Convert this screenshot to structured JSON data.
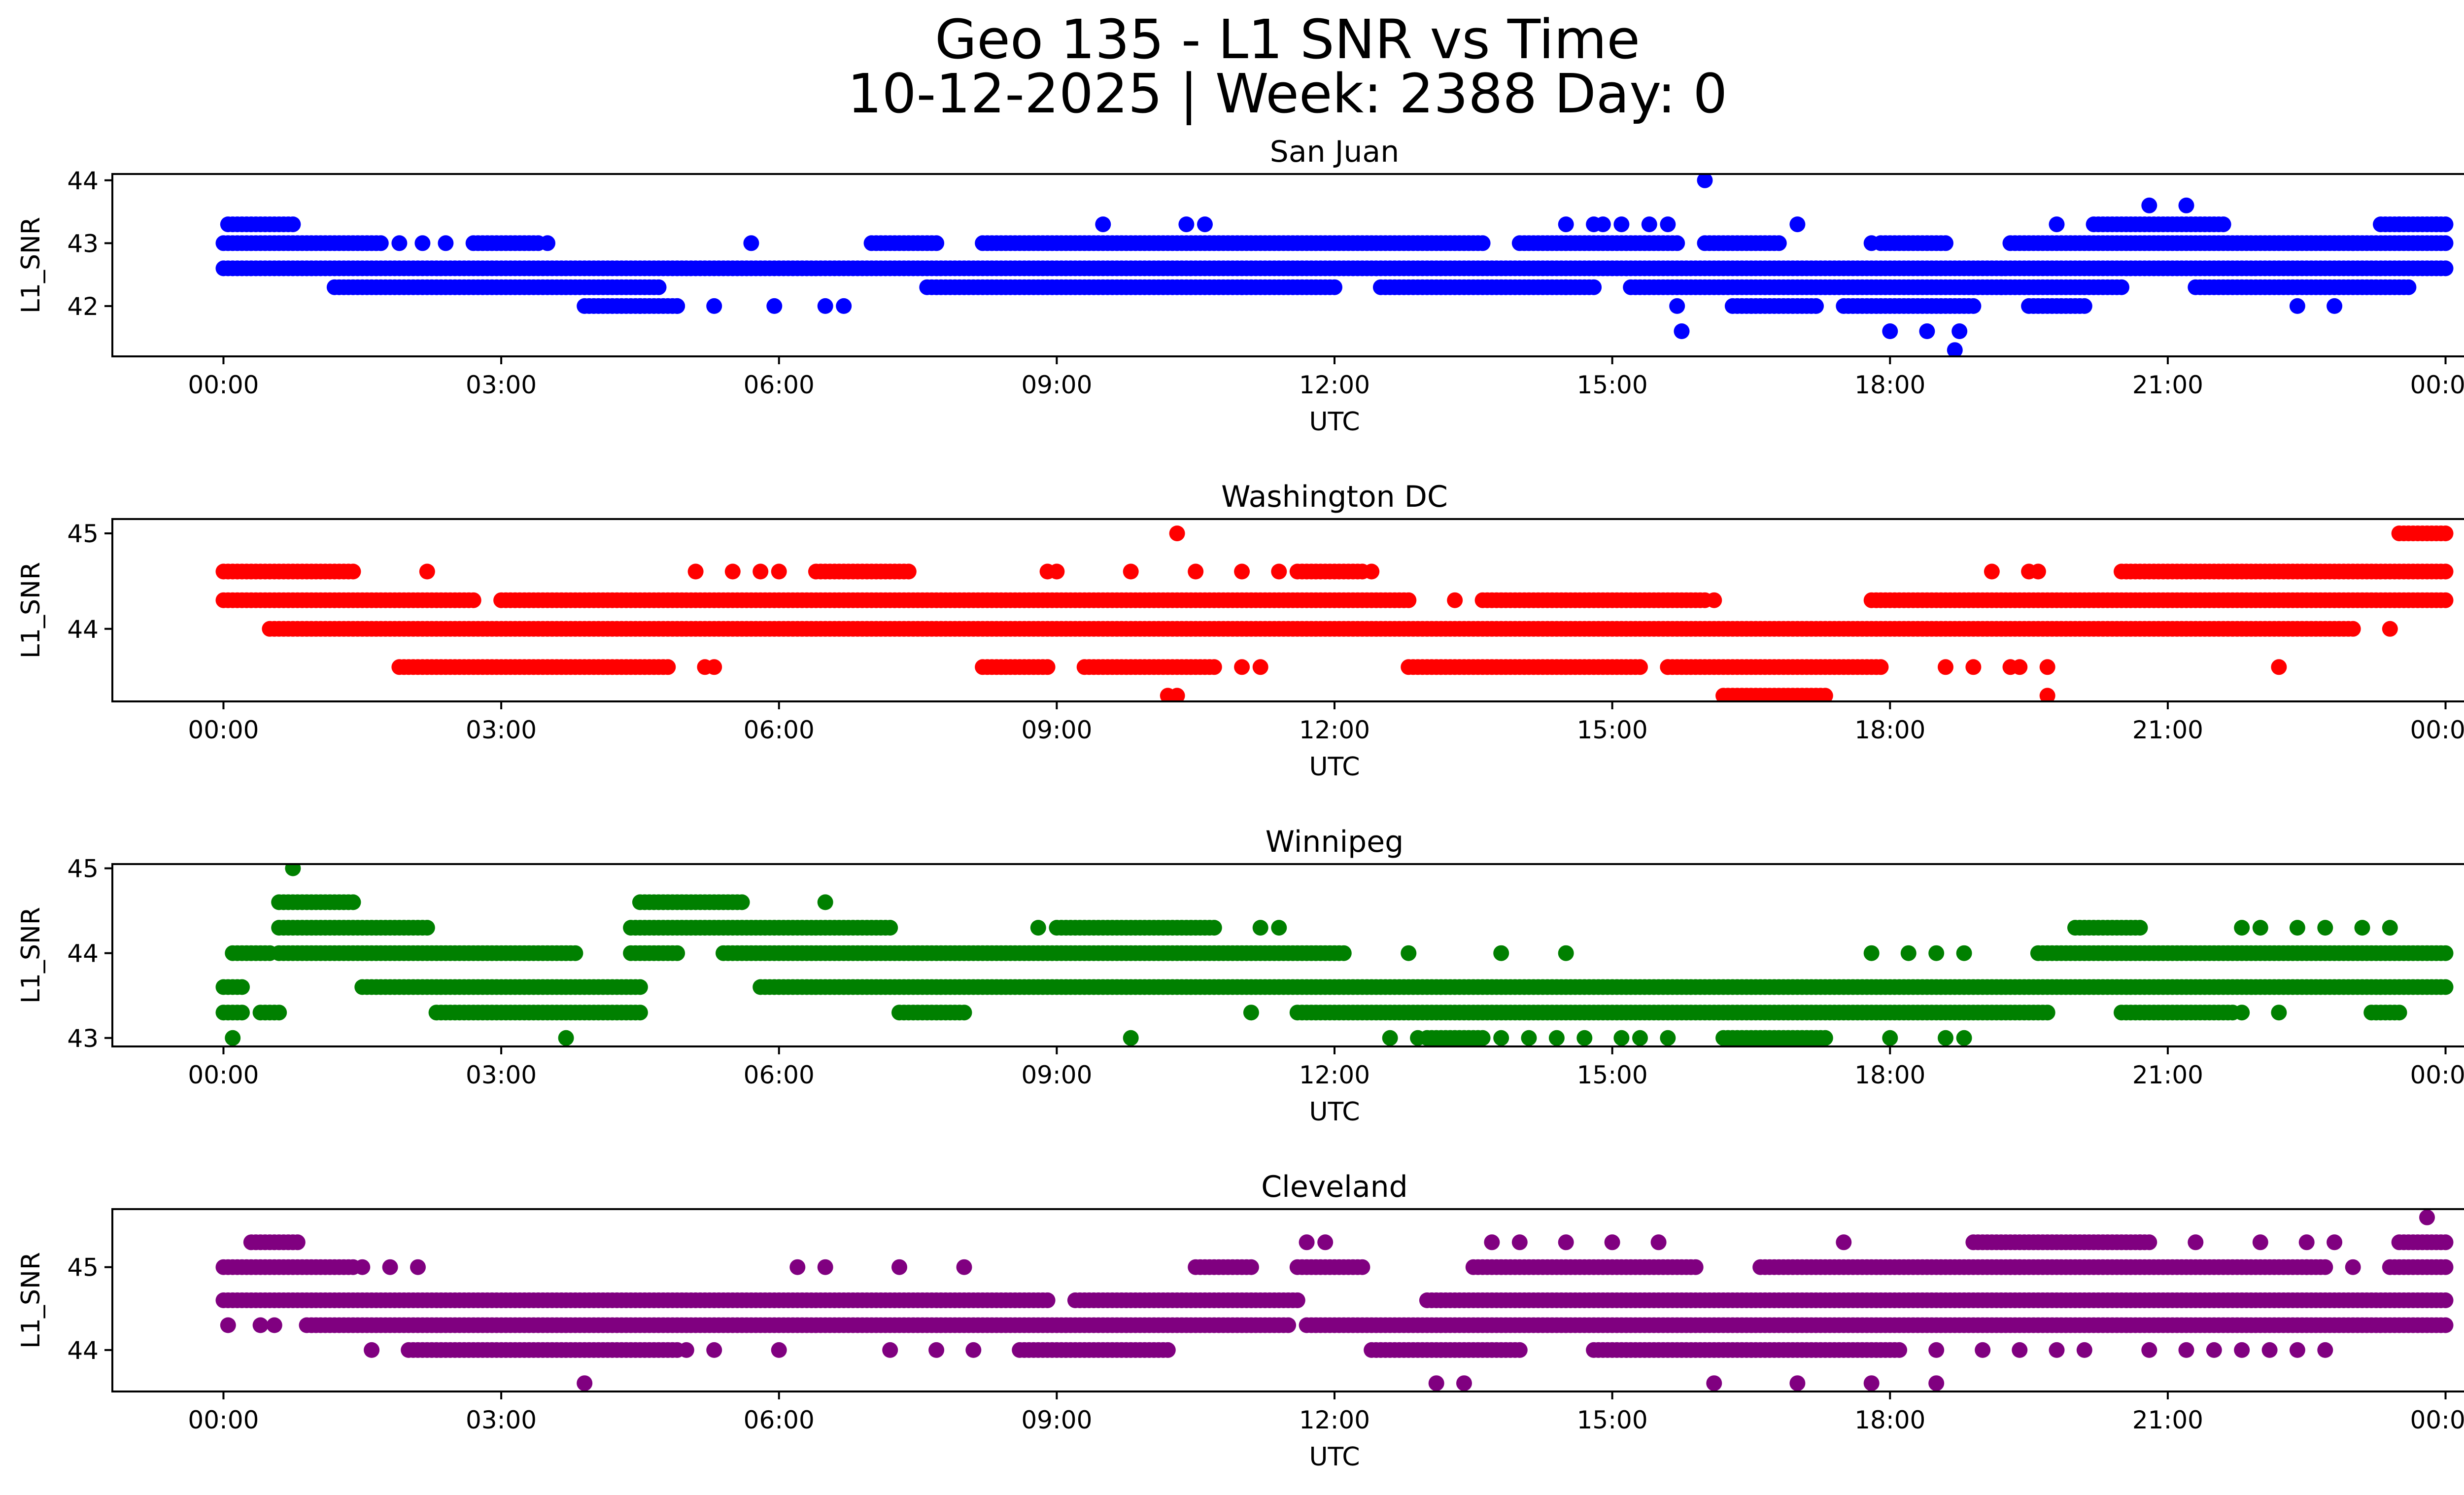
{
  "header": {
    "title_line1": "Geo 135 - L1 SNR vs Time",
    "title_line2": "10-12-2025 | Week: 2388 Day: 0"
  },
  "chart_data": [
    {
      "type": "scatter",
      "title": "San Juan",
      "color": "#0000ff",
      "xlabel": "UTC",
      "ylabel": "L1_SNR",
      "xlim_hours": [
        -1.2,
        25.2
      ],
      "ylim": [
        41.2,
        44.1
      ],
      "xticks": [
        "00:00",
        "03:00",
        "06:00",
        "09:00",
        "12:00",
        "15:00",
        "18:00",
        "21:00",
        "00:00"
      ],
      "yticks": [
        42,
        43,
        44
      ],
      "bands": [
        {
          "y": 42.6,
          "ranges": [
            [
              0.0,
              24.0
            ]
          ]
        },
        {
          "y": 43.0,
          "ranges": [
            [
              0.0,
              1.7
            ],
            [
              2.7,
              3.4
            ],
            [
              7.0,
              7.7
            ],
            [
              8.2,
              13.6
            ],
            [
              14.0,
              15.7
            ],
            [
              16.0,
              16.8
            ],
            [
              17.9,
              18.6
            ],
            [
              19.3,
              24.0
            ]
          ]
        },
        {
          "y": 42.3,
          "ranges": [
            [
              1.2,
              4.7
            ],
            [
              7.6,
              12.0
            ],
            [
              12.5,
              14.8
            ],
            [
              15.2,
              20.5
            ],
            [
              21.3,
              23.6
            ]
          ]
        },
        {
          "y": 43.3,
          "ranges": [
            [
              0.05,
              0.75
            ],
            [
              20.2,
              21.6
            ],
            [
              23.3,
              24.0
            ]
          ]
        },
        {
          "y": 42.0,
          "ranges": [
            [
              3.9,
              4.9
            ],
            [
              16.3,
              17.2
            ],
            [
              17.5,
              18.9
            ],
            [
              19.5,
              20.1
            ]
          ]
        }
      ],
      "points": [
        [
          1.9,
          43.0
        ],
        [
          2.15,
          43.0
        ],
        [
          2.4,
          43.0
        ],
        [
          3.5,
          43.0
        ],
        [
          4.5,
          42.0
        ],
        [
          4.9,
          42.0
        ],
        [
          5.3,
          42.0
        ],
        [
          5.7,
          43.0
        ],
        [
          5.95,
          42.0
        ],
        [
          6.5,
          42.0
        ],
        [
          6.7,
          42.0
        ],
        [
          9.5,
          43.3
        ],
        [
          10.4,
          43.3
        ],
        [
          10.6,
          43.3
        ],
        [
          11.0,
          42.3
        ],
        [
          14.5,
          43.3
        ],
        [
          14.5,
          42.3
        ],
        [
          14.8,
          43.3
        ],
        [
          14.9,
          43.3
        ],
        [
          15.1,
          43.3
        ],
        [
          15.4,
          43.3
        ],
        [
          15.6,
          43.3
        ],
        [
          15.7,
          42.0
        ],
        [
          15.75,
          41.6
        ],
        [
          16.0,
          44.0
        ],
        [
          17.0,
          43.3
        ],
        [
          17.8,
          43.0
        ],
        [
          18.0,
          41.6
        ],
        [
          18.4,
          41.6
        ],
        [
          18.7,
          41.3
        ],
        [
          18.75,
          41.6
        ],
        [
          19.2,
          42.3
        ],
        [
          19.8,
          43.3
        ],
        [
          20.8,
          43.6
        ],
        [
          21.2,
          43.6
        ],
        [
          22.4,
          42.0
        ],
        [
          22.8,
          42.0
        ],
        [
          23.0,
          43.0
        ],
        [
          23.5,
          43.3
        ],
        [
          23.9,
          43.3
        ]
      ]
    },
    {
      "type": "scatter",
      "title": "Washington DC",
      "color": "#ff0000",
      "xlabel": "UTC",
      "ylabel": "L1_SNR",
      "xlim_hours": [
        -1.2,
        25.2
      ],
      "ylim": [
        43.24,
        45.15
      ],
      "xticks": [
        "00:00",
        "03:00",
        "06:00",
        "09:00",
        "12:00",
        "15:00",
        "18:00",
        "21:00",
        "00:00"
      ],
      "yticks": [
        44,
        45
      ],
      "bands": [
        {
          "y": 44.3,
          "ranges": [
            [
              0.0,
              2.7
            ],
            [
              3.0,
              12.8
            ],
            [
              13.6,
              16.0
            ],
            [
              17.8,
              24.0
            ]
          ]
        },
        {
          "y": 44.0,
          "ranges": [
            [
              0.5,
              23.0
            ]
          ]
        },
        {
          "y": 44.6,
          "ranges": [
            [
              0.0,
              1.4
            ],
            [
              6.4,
              7.4
            ],
            [
              11.6,
              12.3
            ],
            [
              20.5,
              24.0
            ]
          ]
        },
        {
          "y": 43.6,
          "ranges": [
            [
              1.9,
              4.8
            ],
            [
              8.2,
              8.9
            ],
            [
              9.3,
              10.7
            ],
            [
              12.8,
              15.3
            ],
            [
              15.6,
              17.9
            ]
          ]
        },
        {
          "y": 45.0,
          "ranges": [
            [
              23.5,
              24.0
            ]
          ]
        },
        {
          "y": 43.3,
          "ranges": [
            [
              16.2,
              17.3
            ]
          ]
        }
      ],
      "points": [
        [
          2.2,
          44.6
        ],
        [
          5.1,
          44.6
        ],
        [
          5.5,
          44.6
        ],
        [
          5.8,
          44.6
        ],
        [
          6.0,
          44.6
        ],
        [
          8.9,
          44.6
        ],
        [
          9.0,
          44.6
        ],
        [
          9.8,
          44.6
        ],
        [
          10.3,
          45.0
        ],
        [
          10.5,
          44.6
        ],
        [
          11.0,
          44.6
        ],
        [
          11.4,
          44.6
        ],
        [
          12.4,
          44.6
        ],
        [
          10.2,
          43.3
        ],
        [
          10.3,
          43.3
        ],
        [
          11.0,
          43.6
        ],
        [
          11.2,
          43.6
        ],
        [
          5.2,
          43.6
        ],
        [
          5.3,
          43.6
        ],
        [
          13.3,
          44.3
        ],
        [
          16.1,
          44.3
        ],
        [
          15.6,
          43.6
        ],
        [
          18.6,
          43.6
        ],
        [
          18.9,
          43.6
        ],
        [
          19.3,
          43.6
        ],
        [
          19.4,
          43.6
        ],
        [
          19.7,
          43.6
        ],
        [
          19.7,
          43.3
        ],
        [
          19.1,
          44.6
        ],
        [
          19.5,
          44.6
        ],
        [
          19.6,
          44.6
        ],
        [
          23.4,
          44.0
        ],
        [
          22.2,
          43.6
        ]
      ]
    },
    {
      "type": "scatter",
      "title": "Winnipeg",
      "color": "#008000",
      "xlabel": "UTC",
      "ylabel": "L1_SNR",
      "xlim_hours": [
        -1.2,
        25.2
      ],
      "ylim": [
        42.9,
        45.05
      ],
      "xticks": [
        "00:00",
        "03:00",
        "06:00",
        "09:00",
        "12:00",
        "15:00",
        "18:00",
        "21:00",
        "00:00"
      ],
      "yticks": [
        43,
        44,
        45
      ],
      "bands": [
        {
          "y": 43.6,
          "ranges": [
            [
              0.0,
              0.2
            ],
            [
              1.5,
              4.5
            ],
            [
              5.8,
              24.0
            ]
          ]
        },
        {
          "y": 44.0,
          "ranges": [
            [
              0.1,
              0.5
            ],
            [
              0.6,
              3.8
            ],
            [
              4.4,
              4.9
            ],
            [
              5.4,
              12.1
            ],
            [
              19.6,
              24.0
            ]
          ]
        },
        {
          "y": 43.3,
          "ranges": [
            [
              0.0,
              0.2
            ],
            [
              0.4,
              0.6
            ],
            [
              2.3,
              4.5
            ],
            [
              7.3,
              8.0
            ],
            [
              11.6,
              19.7
            ],
            [
              20.5,
              21.7
            ],
            [
              23.2,
              23.5
            ]
          ]
        },
        {
          "y": 44.3,
          "ranges": [
            [
              0.6,
              2.2
            ],
            [
              4.4,
              7.2
            ],
            [
              9.0,
              10.7
            ],
            [
              20.0,
              20.7
            ]
          ]
        },
        {
          "y": 44.6,
          "ranges": [
            [
              0.6,
              1.4
            ],
            [
              4.5,
              5.6
            ]
          ]
        },
        {
          "y": 43.0,
          "ranges": [
            [
              13.0,
              13.6
            ],
            [
              16.2,
              17.3
            ]
          ]
        }
      ],
      "points": [
        [
          0.1,
          43.0
        ],
        [
          0.75,
          45.0
        ],
        [
          6.5,
          44.6
        ],
        [
          3.7,
          43.0
        ],
        [
          9.8,
          43.0
        ],
        [
          8.8,
          44.3
        ],
        [
          11.2,
          44.3
        ],
        [
          11.4,
          44.3
        ],
        [
          11.1,
          43.3
        ],
        [
          12.6,
          43.0
        ],
        [
          12.9,
          43.0
        ],
        [
          13.8,
          43.0
        ],
        [
          14.1,
          43.0
        ],
        [
          14.4,
          43.0
        ],
        [
          14.7,
          43.0
        ],
        [
          15.1,
          43.0
        ],
        [
          15.3,
          43.0
        ],
        [
          15.6,
          43.0
        ],
        [
          12.8,
          44.0
        ],
        [
          13.8,
          44.0
        ],
        [
          14.5,
          44.0
        ],
        [
          17.8,
          44.0
        ],
        [
          18.2,
          44.0
        ],
        [
          18.5,
          44.0
        ],
        [
          18.8,
          44.0
        ],
        [
          18.0,
          43.0
        ],
        [
          18.6,
          43.0
        ],
        [
          18.8,
          43.0
        ],
        [
          21.8,
          43.3
        ],
        [
          22.2,
          43.3
        ],
        [
          22.0,
          44.3
        ],
        [
          22.4,
          44.3
        ],
        [
          22.7,
          44.3
        ],
        [
          23.1,
          44.3
        ],
        [
          23.4,
          44.3
        ],
        [
          21.8,
          44.3
        ]
      ]
    },
    {
      "type": "scatter",
      "title": "Cleveland",
      "color": "#800080",
      "xlabel": "UTC",
      "ylabel": "L1_SNR",
      "xlim_hours": [
        -1.2,
        25.2
      ],
      "ylim": [
        43.5,
        45.7
      ],
      "xticks": [
        "00:00",
        "03:00",
        "06:00",
        "09:00",
        "12:00",
        "15:00",
        "18:00",
        "21:00",
        "00:00"
      ],
      "yticks": [
        44,
        45
      ],
      "bands": [
        {
          "y": 44.6,
          "ranges": [
            [
              0.0,
              8.9
            ],
            [
              9.2,
              11.6
            ],
            [
              13.0,
              24.0
            ]
          ]
        },
        {
          "y": 44.3,
          "ranges": [
            [
              0.9,
              11.5
            ],
            [
              11.7,
              24.0
            ]
          ]
        },
        {
          "y": 45.0,
          "ranges": [
            [
              0.0,
              1.4
            ],
            [
              10.5,
              11.1
            ],
            [
              11.6,
              12.3
            ],
            [
              13.5,
              15.9
            ],
            [
              16.6,
              19.4
            ],
            [
              19.3,
              22.7
            ],
            [
              23.4,
              24.0
            ]
          ]
        },
        {
          "y": 44.0,
          "ranges": [
            [
              2.0,
              4.9
            ],
            [
              8.6,
              10.2
            ],
            [
              12.4,
              14.0
            ],
            [
              14.8,
              18.1
            ]
          ]
        },
        {
          "y": 45.3,
          "ranges": [
            [
              0.3,
              0.8
            ],
            [
              18.9,
              20.8
            ],
            [
              23.5,
              24.0
            ]
          ]
        }
      ],
      "points": [
        [
          0.05,
          44.3
        ],
        [
          0.4,
          44.3
        ],
        [
          0.55,
          44.3
        ],
        [
          1.6,
          44.0
        ],
        [
          1.5,
          45.0
        ],
        [
          1.8,
          45.0
        ],
        [
          2.1,
          45.0
        ],
        [
          3.9,
          43.6
        ],
        [
          6.2,
          45.0
        ],
        [
          6.5,
          45.0
        ],
        [
          5.0,
          44.0
        ],
        [
          5.3,
          44.0
        ],
        [
          6.0,
          44.0
        ],
        [
          7.2,
          44.0
        ],
        [
          7.3,
          45.0
        ],
        [
          7.7,
          44.0
        ],
        [
          8.0,
          45.0
        ],
        [
          8.1,
          44.0
        ],
        [
          11.7,
          45.3
        ],
        [
          11.9,
          45.3
        ],
        [
          13.1,
          43.6
        ],
        [
          13.4,
          43.6
        ],
        [
          13.7,
          45.3
        ],
        [
          14.0,
          45.3
        ],
        [
          14.5,
          45.3
        ],
        [
          15.0,
          45.3
        ],
        [
          15.5,
          45.3
        ],
        [
          16.1,
          43.6
        ],
        [
          17.0,
          43.6
        ],
        [
          17.5,
          45.3
        ],
        [
          17.8,
          43.6
        ],
        [
          18.5,
          43.6
        ],
        [
          18.5,
          44.0
        ],
        [
          19.0,
          44.0
        ],
        [
          19.4,
          44.0
        ],
        [
          19.8,
          44.0
        ],
        [
          20.1,
          44.0
        ],
        [
          20.8,
          44.0
        ],
        [
          21.2,
          44.0
        ],
        [
          21.5,
          44.0
        ],
        [
          21.8,
          44.0
        ],
        [
          22.1,
          44.0
        ],
        [
          22.4,
          44.0
        ],
        [
          22.7,
          44.0
        ],
        [
          23.8,
          45.6
        ],
        [
          20.7,
          45.3
        ],
        [
          21.3,
          45.3
        ],
        [
          22.0,
          45.3
        ],
        [
          22.5,
          45.3
        ],
        [
          22.8,
          45.3
        ],
        [
          22.5,
          45.0
        ],
        [
          23.0,
          45.0
        ]
      ]
    }
  ]
}
